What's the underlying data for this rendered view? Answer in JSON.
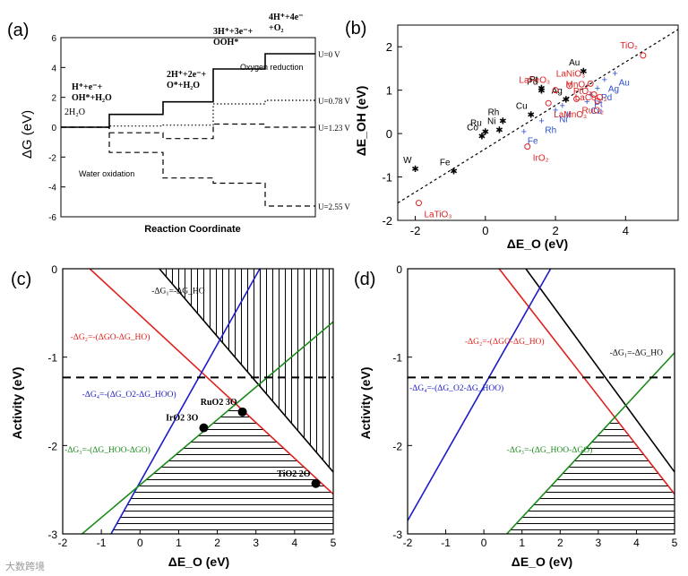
{
  "watermark": "大数跨境",
  "chart_data": [
    {
      "panel": "(a)",
      "type": "line",
      "title": "",
      "xlabel": "Reaction Coordinate",
      "ylabel": "ΔG (eV)",
      "ylim": [
        -6,
        6
      ],
      "yticks": [
        "6",
        "4",
        "2",
        "0",
        "-2",
        "-4",
        "-6"
      ],
      "steps": [
        "2H2O",
        "OH*+H2O",
        "O*+H2O",
        "OOH*",
        "O2"
      ],
      "step_labels": [
        "2H₂O",
        "H⁺+e⁻+\nOH*+H₂O",
        "2H⁺+2e⁻+\nO*+H₂O",
        "3H⁺+3e⁻+\nOOH*",
        "4H⁺+4e⁻\n+O₂"
      ],
      "series": [
        {
          "name": "U=0 V",
          "values": [
            0,
            0.86,
            1.7,
            3.9,
            4.92
          ],
          "style": "solid"
        },
        {
          "name": "U=0.78 V",
          "values": [
            0,
            0.08,
            0.14,
            1.56,
            1.8
          ],
          "style": "dotted"
        },
        {
          "name": "U=1.23 V",
          "values": [
            0,
            -0.37,
            -0.76,
            0.21,
            0.0
          ],
          "style": "dashed"
        },
        {
          "name": "U=2.55 V",
          "values": [
            0,
            -1.69,
            -3.4,
            -3.75,
            -5.28
          ],
          "style": "dashed"
        }
      ],
      "annotations": [
        "Oxygen reduction",
        "Water oxidation"
      ]
    },
    {
      "panel": "(b)",
      "type": "scatter",
      "xlabel": "ΔE_O (eV)",
      "ylabel": "ΔE_OH (eV)",
      "xlim": [
        -2.5,
        5.5
      ],
      "ylim": [
        -2,
        2.5
      ],
      "xticks": [
        "-2",
        "0",
        "2",
        "4"
      ],
      "yticks": [
        "-2",
        "-1",
        "0",
        "1",
        "2"
      ],
      "fit_line": [
        [
          -2.5,
          -1.6
        ],
        [
          5.5,
          2.4
        ]
      ],
      "points": [
        {
          "label": "W",
          "x": -2.0,
          "y": -0.8,
          "group": "metal"
        },
        {
          "label": "Fe",
          "x": -0.9,
          "y": -0.85,
          "group": "metal"
        },
        {
          "label": "Co",
          "x": -0.1,
          "y": -0.05,
          "group": "metal"
        },
        {
          "label": "Ru",
          "x": 0.0,
          "y": 0.05,
          "group": "metal"
        },
        {
          "label": "Rh",
          "x": 0.5,
          "y": 0.3,
          "group": "metal"
        },
        {
          "label": "Ni",
          "x": 0.4,
          "y": 0.1,
          "group": "metal"
        },
        {
          "label": "Cu",
          "x": 1.3,
          "y": 0.45,
          "group": "metal"
        },
        {
          "label": "Pd",
          "x": 1.6,
          "y": 1.0,
          "group": "metal"
        },
        {
          "label": "Pt",
          "x": 1.6,
          "y": 1.05,
          "group": "metal"
        },
        {
          "label": "Ag",
          "x": 2.3,
          "y": 0.8,
          "group": "metal"
        },
        {
          "label": "Au",
          "x": 2.8,
          "y": 1.45,
          "group": "metal"
        },
        {
          "label": "Fe",
          "x": 1.1,
          "y": 0.05,
          "group": "metal-oxide"
        },
        {
          "label": "Rh",
          "x": 1.6,
          "y": 0.3,
          "group": "metal-oxide"
        },
        {
          "label": "Ni",
          "x": 2.0,
          "y": 0.55,
          "group": "metal-oxide"
        },
        {
          "label": "Ir",
          "x": 2.2,
          "y": 0.65,
          "group": "metal-oxide"
        },
        {
          "label": "Cu",
          "x": 2.9,
          "y": 0.75,
          "group": "metal-oxide"
        },
        {
          "label": "Pt",
          "x": 3.0,
          "y": 0.9,
          "group": "metal-oxide"
        },
        {
          "label": "Pd",
          "x": 3.2,
          "y": 1.05,
          "group": "metal-oxide"
        },
        {
          "label": "Ag",
          "x": 3.4,
          "y": 1.25,
          "group": "metal-oxide"
        },
        {
          "label": "Au",
          "x": 3.7,
          "y": 1.4,
          "group": "metal-oxide"
        },
        {
          "label": "LaNiO3",
          "x": 3.0,
          "y": 1.15,
          "group": "oxide"
        },
        {
          "label": "LaCoO3",
          "x": 2.4,
          "y": 1.1,
          "group": "oxide"
        },
        {
          "label": "LaFeO3",
          "x": 2.0,
          "y": 1.0,
          "group": "oxide"
        },
        {
          "label": "LaMnO3",
          "x": 1.8,
          "y": 0.7,
          "group": "oxide"
        },
        {
          "label": "MnO2",
          "x": 3.1,
          "y": 0.9,
          "group": "oxide"
        },
        {
          "label": "RuO2",
          "x": 2.6,
          "y": 0.8,
          "group": "oxide"
        },
        {
          "label": "PtO2",
          "x": 3.2,
          "y": 0.75,
          "group": "oxide"
        },
        {
          "label": "IrO2",
          "x": 1.2,
          "y": -0.3,
          "group": "oxide"
        },
        {
          "label": "TiO2",
          "x": 4.5,
          "y": 1.8,
          "group": "oxide"
        },
        {
          "label": "LaTiO3",
          "x": -1.9,
          "y": -1.6,
          "group": "oxide"
        }
      ]
    },
    {
      "panel": "(c)",
      "type": "line",
      "xlabel": "ΔE_O (eV)",
      "ylabel": "Activity (eV)",
      "xlim": [
        -2,
        5
      ],
      "ylim": [
        -3,
        0
      ],
      "xticks": [
        "-2",
        "-1",
        "0",
        "1",
        "2",
        "3",
        "4",
        "5"
      ],
      "yticks": [
        "0",
        "-1",
        "-2",
        "-3"
      ],
      "threshold": -1.23,
      "series": [
        {
          "name": "-ΔG1=-ΔGHO",
          "color": "#000000",
          "points": [
            [
              0.5,
              0
            ],
            [
              5,
              -2.3
            ]
          ]
        },
        {
          "name": "-ΔG2=-(ΔGO-ΔGHO)",
          "color": "#e0201c",
          "points": [
            [
              -1.3,
              0
            ],
            [
              5,
              -2.55
            ]
          ]
        },
        {
          "name": "-ΔG4=-(ΔGO2-ΔGHOO)",
          "color": "#1c1cc8",
          "points": [
            [
              -0.75,
              -3
            ],
            [
              3.1,
              0
            ]
          ]
        },
        {
          "name": "-ΔG3=-(ΔGHOO-ΔGO)",
          "color": "#1a8a1a",
          "points": [
            [
              -1.5,
              -3
            ],
            [
              5,
              -0.6
            ]
          ]
        }
      ],
      "points": [
        {
          "label": "RuO2_3O",
          "x": 2.65,
          "y": -1.62
        },
        {
          "label": "IrO2_3O",
          "x": 1.65,
          "y": -1.8
        },
        {
          "label": "TiO2_2O",
          "x": 4.55,
          "y": -2.43
        }
      ]
    },
    {
      "panel": "(d)",
      "type": "line",
      "xlabel": "ΔE_O (eV)",
      "ylabel": "Activity (eV)",
      "xlim": [
        -2,
        5
      ],
      "ylim": [
        -3,
        0
      ],
      "xticks": [
        "-2",
        "-1",
        "0",
        "1",
        "2",
        "3",
        "4",
        "5"
      ],
      "yticks": [
        "0",
        "-1",
        "-2",
        "-3"
      ],
      "threshold": -1.23,
      "series": [
        {
          "name": "-ΔG1=-ΔGHO",
          "color": "#000000",
          "points": [
            [
              1.1,
              0
            ],
            [
              5,
              -2.3
            ]
          ]
        },
        {
          "name": "-ΔG2=-(ΔGO-ΔGHO)",
          "color": "#e0201c",
          "points": [
            [
              0.4,
              0
            ],
            [
              5,
              -2.55
            ]
          ]
        },
        {
          "name": "-ΔG4=-(ΔGO2-ΔGHOO)",
          "color": "#1c1cc8",
          "points": [
            [
              -2,
              -2.85
            ],
            [
              1.75,
              0
            ]
          ]
        },
        {
          "name": "-ΔG3=-(ΔGHOO-ΔGO)",
          "color": "#1a8a1a",
          "points": [
            [
              0.6,
              -3
            ],
            [
              5,
              -0.95
            ]
          ]
        }
      ]
    }
  ]
}
